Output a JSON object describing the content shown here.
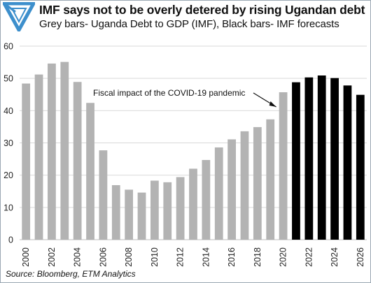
{
  "header": {
    "title": "IMF says not to be overly detered by rising Ugandan debt",
    "subtitle": "Grey bars- Uganda Debt to GDP (IMF), Black bars- IMF forecasts"
  },
  "footer": {
    "source": "Source: Bloomberg, ETM Analytics"
  },
  "colors": {
    "actual": "#b3b3b3",
    "forecast": "#000000",
    "grid": "#d9d9d9",
    "logo": "#3d8fcc",
    "text": "#222222"
  },
  "logo_icon": "etm-triangle-logo-icon",
  "chart_data": {
    "type": "bar",
    "title": "IMF says not to be overly detered by rising Ugandan debt",
    "subtitle": "Grey bars- Uganda Debt to GDP (IMF), Black bars- IMF forecasts",
    "categories": [
      "2000",
      "2001",
      "2002",
      "2003",
      "2004",
      "2005",
      "2006",
      "2007",
      "2008",
      "2009",
      "2010",
      "2011",
      "2012",
      "2013",
      "2014",
      "2015",
      "2016",
      "2017",
      "2018",
      "2019",
      "2020",
      "2021",
      "2022",
      "2023",
      "2024",
      "2025",
      "2026"
    ],
    "x_tick_labels": [
      "2000",
      "2002",
      "2004",
      "2006",
      "2008",
      "2010",
      "2012",
      "2014",
      "2016",
      "2018",
      "2020",
      "2022",
      "2024",
      "2026"
    ],
    "series": [
      {
        "name": "Grey bars- Uganda Debt to GDP (IMF)",
        "color": "#b3b3b3",
        "values": [
          48.4,
          51.2,
          54.6,
          55.1,
          48.9,
          42.4,
          27.7,
          16.9,
          15.5,
          14.6,
          18.3,
          17.8,
          19.4,
          22.0,
          24.7,
          28.6,
          31.1,
          33.6,
          34.9,
          37.3,
          45.7,
          null,
          null,
          null,
          null,
          null,
          null
        ]
      },
      {
        "name": "Black bars- IMF forecasts",
        "color": "#000000",
        "values": [
          null,
          null,
          null,
          null,
          null,
          null,
          null,
          null,
          null,
          null,
          null,
          null,
          null,
          null,
          null,
          null,
          null,
          null,
          null,
          null,
          null,
          48.8,
          50.3,
          50.9,
          50.1,
          47.8,
          44.9
        ]
      }
    ],
    "ylim": [
      0,
      60
    ],
    "yticks": [
      0,
      10,
      20,
      30,
      40,
      50,
      60
    ],
    "grid": true,
    "legend": "none",
    "annotations": [
      {
        "text": "Fiscal impact of the COVID-19 pandemic",
        "target_category": "2020"
      }
    ]
  }
}
